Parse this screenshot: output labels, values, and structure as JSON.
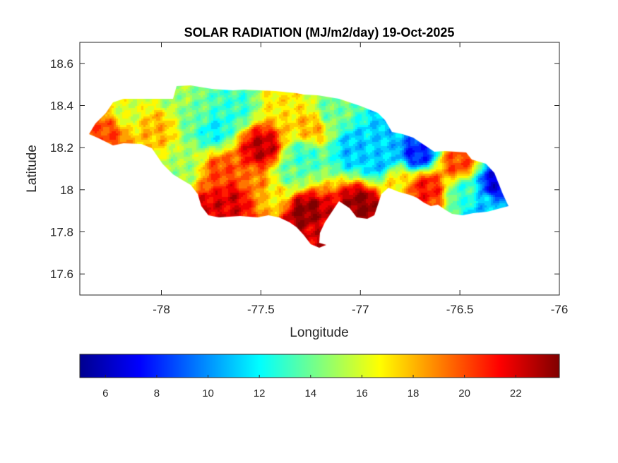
{
  "chart_data": {
    "type": "heatmap",
    "title": "SOLAR RADIATION (MJ/m2/day) 19-Oct-2025",
    "xlabel": "Longitude",
    "ylabel": "Latitude",
    "xlim": [
      -78.41,
      -76
    ],
    "ylim": [
      17.5,
      18.7
    ],
    "xticks": [
      -78,
      -77.5,
      -77,
      -76.5,
      -76
    ],
    "xtick_labels": [
      "-78",
      "-77.5",
      "-77",
      "-76.5",
      "-76"
    ],
    "yticks": [
      17.6,
      17.8,
      18,
      18.2,
      18.4,
      18.6
    ],
    "ytick_labels": [
      "17.6",
      "17.8",
      "18",
      "18.2",
      "18.4",
      "18.6"
    ],
    "colormap": "jet",
    "colorbar": {
      "location": "bottom",
      "range": [
        5,
        23.7
      ],
      "ticks": [
        6,
        8,
        10,
        12,
        14,
        16,
        18,
        20,
        22
      ],
      "tick_labels": [
        "6",
        "8",
        "10",
        "12",
        "14",
        "16",
        "18",
        "20",
        "22"
      ]
    },
    "grid": false,
    "samples": [
      {
        "lon": -78.28,
        "lat": 18.27,
        "value": 20
      },
      {
        "lon": -78.17,
        "lat": 18.37,
        "value": 16
      },
      {
        "lon": -78.03,
        "lat": 18.3,
        "value": 18
      },
      {
        "lon": -77.82,
        "lat": 18.35,
        "value": 14
      },
      {
        "lon": -77.75,
        "lat": 18.3,
        "value": 12
      },
      {
        "lon": -77.64,
        "lat": 18.4,
        "value": 13
      },
      {
        "lon": -77.89,
        "lat": 18.11,
        "value": 15
      },
      {
        "lon": -77.71,
        "lat": 18.08,
        "value": 20
      },
      {
        "lon": -77.64,
        "lat": 17.96,
        "value": 22
      },
      {
        "lon": -77.5,
        "lat": 18.2,
        "value": 22.5
      },
      {
        "lon": -77.75,
        "lat": 17.9,
        "value": 22
      },
      {
        "lon": -77.54,
        "lat": 18.03,
        "value": 19
      },
      {
        "lon": -77.36,
        "lat": 18.08,
        "value": 14
      },
      {
        "lon": -77.29,
        "lat": 18.16,
        "value": 13
      },
      {
        "lon": -77.25,
        "lat": 18.3,
        "value": 18
      },
      {
        "lon": -77.15,
        "lat": 18.37,
        "value": 14
      },
      {
        "lon": -77.04,
        "lat": 18.2,
        "value": 11
      },
      {
        "lon": -76.9,
        "lat": 18.13,
        "value": 11
      },
      {
        "lon": -76.72,
        "lat": 18.18,
        "value": 8
      },
      {
        "lon": -76.84,
        "lat": 18.3,
        "value": 11
      },
      {
        "lon": -77.29,
        "lat": 17.9,
        "value": 23.5
      },
      {
        "lon": -77.0,
        "lat": 17.93,
        "value": 23.5
      },
      {
        "lon": -77.22,
        "lat": 17.79,
        "value": 22
      },
      {
        "lon": -76.68,
        "lat": 18.01,
        "value": 21
      },
      {
        "lon": -76.51,
        "lat": 18.13,
        "value": 20
      },
      {
        "lon": -76.47,
        "lat": 18.0,
        "value": 13
      },
      {
        "lon": -76.33,
        "lat": 18.03,
        "value": 7
      },
      {
        "lon": -76.37,
        "lat": 17.93,
        "value": 11
      },
      {
        "lon": -76.83,
        "lat": 18.05,
        "value": 17
      },
      {
        "lon": -77.94,
        "lat": 18.45,
        "value": 15
      },
      {
        "lon": -77.39,
        "lat": 18.43,
        "value": 17
      },
      {
        "lon": -77.43,
        "lat": 17.98,
        "value": 17
      }
    ]
  }
}
